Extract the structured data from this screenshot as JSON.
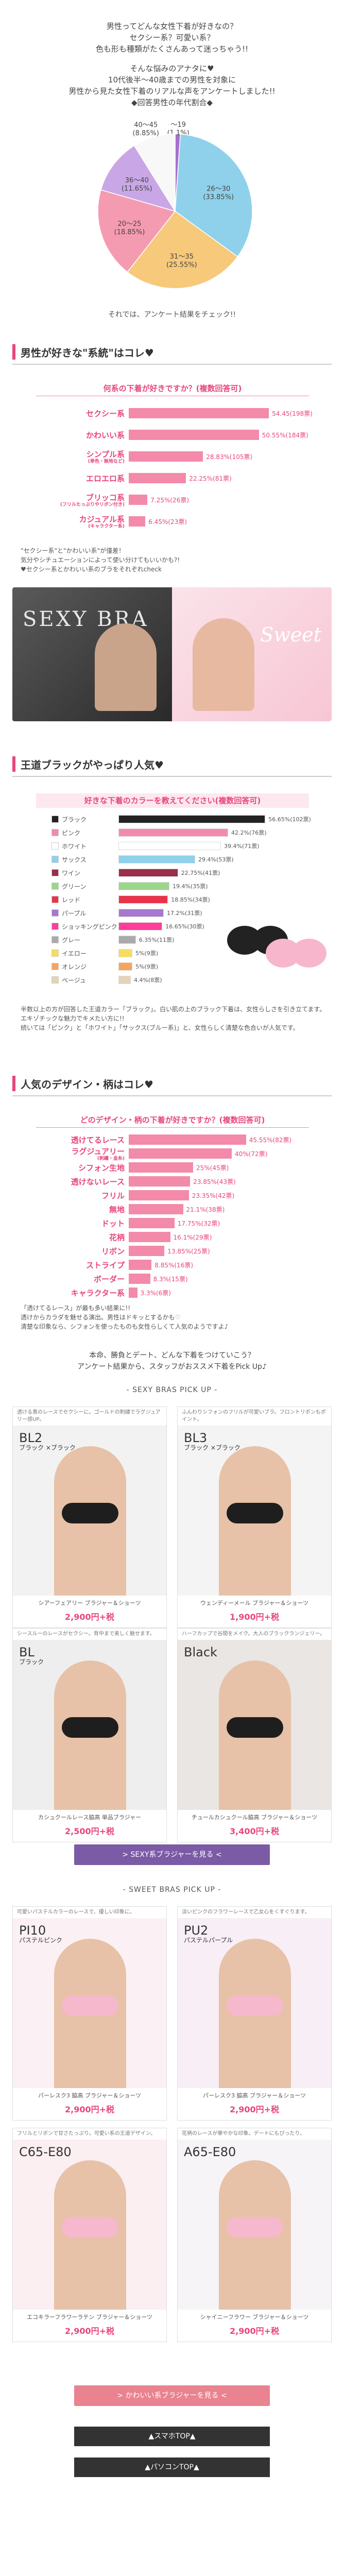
{
  "intro": {
    "lines": [
      "男性ってどんな女性下着が好きなの？",
      "セクシー系？可愛い系？",
      "色も形も種類がたくさんあって迷っちゃう!!"
    ],
    "lines2": [
      "そんな悩みのアナタに♥",
      "10代後半〜40歳までの男性を対象に",
      "男性から見た女性下着のリアルな声をアンケートしました!!"
    ],
    "age_label": "◆回答男性の年代割合◆"
  },
  "pie": {
    "slices": [
      {
        "label": "〜19",
        "pct": "(1.1%)",
        "value": 1.1,
        "color": "#a86fd1"
      },
      {
        "label": "26〜30",
        "pct": "(33.85%)",
        "value": 33.85,
        "color": "#8fd1ea"
      },
      {
        "label": "31〜35",
        "pct": "(25.55%)",
        "value": 25.55,
        "color": "#f6c97b"
      },
      {
        "label": "20〜25",
        "pct": "(18.85%)",
        "value": 18.85,
        "color": "#f59bb1"
      },
      {
        "label": "36〜40",
        "pct": "(11.65%)",
        "value": 11.65,
        "color": "#c9a7e6"
      },
      {
        "label": "40〜45",
        "pct": "(8.85%)",
        "value": 8.85,
        "color": "#f8f8f8"
      }
    ],
    "caption": "それでは、アンケート結果をチェック!!"
  },
  "section1": {
    "title": "男性が好きな\"系統\"はコレ♥",
    "question": "何系の下着が好きですか？(複数回答可)",
    "rows": [
      {
        "label": "セクシー系",
        "sub": "",
        "value": 54.45,
        "text": "54.45(198票)"
      },
      {
        "label": "かわいい系",
        "sub": "",
        "value": 50.55,
        "text": "50.55%(184票)"
      },
      {
        "label": "シンプル系",
        "sub": "(単色・無地など)",
        "value": 28.83,
        "text": "28.83%(105票)"
      },
      {
        "label": "エロエロ系",
        "sub": "",
        "value": 22.25,
        "text": "22.25%(81票)"
      },
      {
        "label": "ブリッコ系",
        "sub": "(フリルたっぷりやリボン付き)",
        "value": 7.25,
        "text": "7.25%(26票)"
      },
      {
        "label": "カジュアル系",
        "sub": "(キャラクター系)",
        "value": 6.45,
        "text": "6.45%(23票)"
      }
    ],
    "notes": [
      "\"セクシー系\"と\"かわいい系\"が僅差！",
      "気分やシチュエーションによって使い分けてもいいかも?!",
      "♥セクシー系とかわいい系のブラをそれぞれcheck"
    ],
    "banner_left": "SEXY BRA",
    "banner_right": "Sweet"
  },
  "section2": {
    "title": "王道ブラックがやっぱり人気♥",
    "question": "好きな下着のカラーを教えてください(複数回答可)",
    "rows": [
      {
        "label": "ブラック",
        "value": 56.65,
        "text": "56.65%(102票)",
        "color": "#222222"
      },
      {
        "label": "ピンク",
        "value": 42.2,
        "text": "42.2%(76票)",
        "color": "#f28ab0"
      },
      {
        "label": "ホワイト",
        "value": 39.4,
        "text": "39.4%(71票)",
        "color": "#ffffff"
      },
      {
        "label": "サックス",
        "value": 29.4,
        "text": "29.4%(53票)",
        "color": "#8fd1ea"
      },
      {
        "label": "ワイン",
        "value": 22.75,
        "text": "22.75%(41票)",
        "color": "#9a2e4b"
      },
      {
        "label": "グリーン",
        "value": 19.4,
        "text": "19.4%(35票)",
        "color": "#9bd68b"
      },
      {
        "label": "レッド",
        "value": 18.85,
        "text": "18.85%(34票)",
        "color": "#e8344a"
      },
      {
        "label": "パープル",
        "value": 17.2,
        "text": "17.2%(31票)",
        "color": "#a678d1"
      },
      {
        "label": "ショッキングピンク",
        "value": 16.65,
        "text": "16.65%(30票)",
        "color": "#ff3d9a"
      },
      {
        "label": "グレー",
        "value": 6.35,
        "text": "6.35%(11票)",
        "color": "#aaaaaa"
      },
      {
        "label": "イエロー",
        "value": 5.0,
        "text": "5%(9票)",
        "color": "#f6dd5c"
      },
      {
        "label": "オレンジ",
        "value": 5.0,
        "text": "5%(9票)",
        "color": "#f6a45c"
      },
      {
        "label": "ベージュ",
        "value": 4.4,
        "text": "4.4%(8票)",
        "color": "#e8d2b4"
      }
    ],
    "notes": [
      "半数以上の方が回答した王道カラー「ブラック」。白い肌の上のブラック下着は、女性らしさを引き立てます。",
      "エキゾチックな魅力でキメたい方に!!",
      "続いては「ピンク」と「ホワイト」「サックス(ブルー系)」と、女性らしく清楚な色合いが人気です。"
    ]
  },
  "section3": {
    "title": "人気のデザイン・柄はコレ♥",
    "question": "どのデザイン・柄の下着が好きですか？(複数回答可)",
    "rows": [
      {
        "label": "透けてるレース",
        "sub": "",
        "value": 45.55,
        "text": "45.55%(82票)"
      },
      {
        "label": "ラグジュアリー",
        "sub": "(刺繍・金糸)",
        "value": 40.0,
        "text": "40%(72票)"
      },
      {
        "label": "シフォン生地",
        "sub": "",
        "value": 25.0,
        "text": "25%(45票)"
      },
      {
        "label": "透けないレース",
        "sub": "",
        "value": 23.85,
        "text": "23.85%(43票)"
      },
      {
        "label": "フリル",
        "sub": "",
        "value": 23.35,
        "text": "23.35%(42票)"
      },
      {
        "label": "無地",
        "sub": "",
        "value": 21.1,
        "text": "21.1%(38票)"
      },
      {
        "label": "ドット",
        "sub": "",
        "value": 17.75,
        "text": "17.75%(32票)"
      },
      {
        "label": "花柄",
        "sub": "",
        "value": 16.1,
        "text": "16.1%(29票)"
      },
      {
        "label": "リボン",
        "sub": "",
        "value": 13.85,
        "text": "13.85%(25票)"
      },
      {
        "label": "ストライプ",
        "sub": "",
        "value": 8.85,
        "text": "8.85%(16票)"
      },
      {
        "label": "ボーダー",
        "sub": "",
        "value": 8.3,
        "text": "8.3%(15票)"
      },
      {
        "label": "キャラクター系",
        "sub": "",
        "value": 3.3,
        "text": "3.3%(6票)"
      }
    ],
    "notes": [
      "「透けてるレース」が最も多い結果に!!",
      "透けからカラダを魅せる演出。男性はドキッとするかも♡",
      "清楚な印象なら、シフォンを使ったものも女性らしくて人気のようですよ♪"
    ]
  },
  "summary": [
    "本命、勝負とデート、どんな下着をつけていこう？",
    "アンケート結果から、スタッフがおススメ下着をPick Up♪"
  ],
  "sexy_pick": {
    "title": "- SEXY BRAS PICK UP -",
    "cards": [
      {
        "desc": "透ける黒のレースでセクシーに。ゴールドの刺繍でラグジュアリー感UP。",
        "code": "BL2",
        "color": "ブラック\n×ブラック",
        "name": "シアーフェアリー\nブラジャー＆ショーツ",
        "price": "2,900円+税"
      },
      {
        "desc": "ふんわりシフォンのフリルが可愛いブラ。フロントリボンもポイント。",
        "code": "BL3",
        "color": "ブラック\n×ブラック",
        "name": "ウェンディーメール\nブラジャー＆ショーツ",
        "price": "1,900円+税"
      },
      {
        "desc": "シースルーのレースがセクシー。背中まで美しく魅せます。",
        "code": "BL",
        "color": "ブラック",
        "name": "カシュクールレース脇高\n単品ブラジャー",
        "price": "2,500円+税"
      },
      {
        "desc": "ハーフカップで谷間をメイク。大人のブラックランジェリー。",
        "code": "Black",
        "color": "",
        "name": "チュールカシュクール脇高\nブラジャー＆ショーツ",
        "price": "3,400円+税"
      }
    ],
    "button": "> SEXY系ブラジャーを見る <"
  },
  "sweet_pick": {
    "title": "- SWEET BRAS PICK UP -",
    "cards": [
      {
        "desc": "可愛いパステルカラーのレースで、優しい印象に。",
        "code": "PI10",
        "color": "パステルピンク",
        "name": "パーレスク3 脇高\nブラジャー＆ショーツ",
        "price": "2,900円+税"
      },
      {
        "desc": "淡いピンクのフラワーレースで乙女心をくすぐります。",
        "code": "PU2",
        "color": "パステルパープル",
        "name": "パーレスク3 脇高\nブラジャー＆ショーツ",
        "price": "2,900円+税"
      },
      {
        "desc": "フリルとリボンで甘さたっぷり。可愛い系の王道デザイン。",
        "code": "C65-E80",
        "color": "",
        "name": "エコキラーフラワーラテン\nブラジャー＆ショーツ",
        "price": "2,900円+税"
      },
      {
        "desc": "花柄のレースが華やかな印象。デートにもぴったり。",
        "code": "A65-E80",
        "color": "",
        "name": "シャイニーフラワー\nブラジャー＆ショーツ",
        "price": "2,900円+税"
      }
    ],
    "button": "> かわいい系ブラジャーを見る <"
  },
  "footer": {
    "sp_top": "▲スマホTOP▲",
    "pc_top": "▲パソコンTOP▲"
  },
  "colors": {
    "accent": "#e8467c",
    "bar": "#f38aa9",
    "sexy_btn": "#7b5aa6",
    "sweet_btn": "#e8838f"
  }
}
